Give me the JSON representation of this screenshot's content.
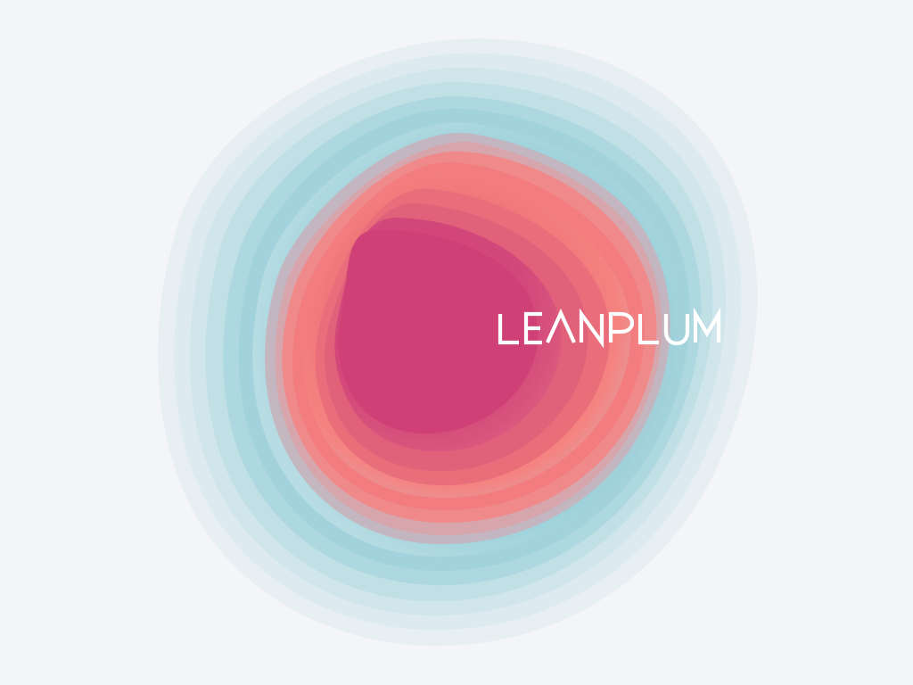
{
  "brand": {
    "name": "LEANPLUM"
  },
  "colors": {
    "background": "#F4F5F7",
    "wordmark": "#FFFFFF",
    "outer_mist": "#E6EFF2",
    "teal": "#9FD3DC",
    "coral": "#F27D7E",
    "core_pink": "#D04577"
  }
}
